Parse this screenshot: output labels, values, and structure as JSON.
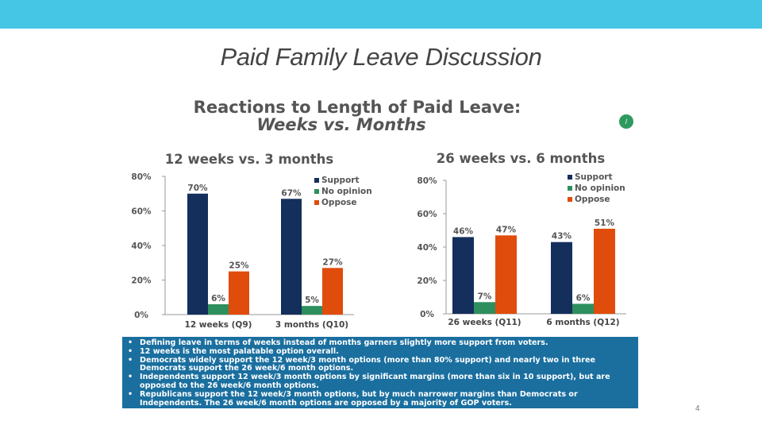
{
  "slide": {
    "title": "Paid Family Leave Discussion",
    "page_number": "4",
    "colors": {
      "top_bar": "#45c6e4",
      "bullet_box": "#1a6f9f"
    }
  },
  "heading": {
    "line1": "Reactions to Length of Paid Leave:",
    "line2": "Weeks vs. Months",
    "leaf_symbol": "/"
  },
  "chart_data": [
    {
      "type": "bar",
      "title": "12 weeks vs. 3 months",
      "categories": [
        "12 weeks (Q9)",
        "3 months (Q10)"
      ],
      "series": [
        {
          "name": "Support",
          "color": "#142f5c",
          "values": [
            70,
            67
          ]
        },
        {
          "name": "No opinion",
          "color": "#2e8f5e",
          "values": [
            6,
            5
          ]
        },
        {
          "name": "Oppose",
          "color": "#e04c0c",
          "values": [
            25,
            27
          ]
        }
      ],
      "yticks": [
        "0%",
        "20%",
        "40%",
        "60%",
        "80%"
      ],
      "ylim": [
        0,
        80
      ],
      "legend": "top-right",
      "xlabel": "",
      "ylabel": ""
    },
    {
      "type": "bar",
      "title": "26 weeks vs. 6 months",
      "categories": [
        "26 weeks (Q11)",
        "6 months (Q12)"
      ],
      "series": [
        {
          "name": "Support",
          "color": "#142f5c",
          "values": [
            46,
            43
          ]
        },
        {
          "name": "No opinion",
          "color": "#2e8f5e",
          "values": [
            7,
            6
          ]
        },
        {
          "name": "Oppose",
          "color": "#e04c0c",
          "values": [
            47,
            51
          ]
        }
      ],
      "yticks": [
        "0%",
        "20%",
        "40%",
        "60%",
        "80%"
      ],
      "ylim": [
        0,
        80
      ],
      "legend": "top-right",
      "xlabel": "",
      "ylabel": ""
    }
  ],
  "bullets": [
    "Defining leave in terms of weeks instead of months garners slightly more support from voters.",
    "12 weeks is the most palatable option overall.",
    "Democrats widely support the 12 week/3 month options (more than 80% support) and nearly two in three Democrats support the 26 week/6 month options.",
    "Independents support 12 week/3 month options by significant margins (more than six in 10 support), but are opposed to the 26 week/6 month options.",
    "Republicans support the 12 week/3 month options, but by much narrower margins than Democrats or Independents.  The 26 week/6 month options are opposed by a majority of GOP voters."
  ]
}
